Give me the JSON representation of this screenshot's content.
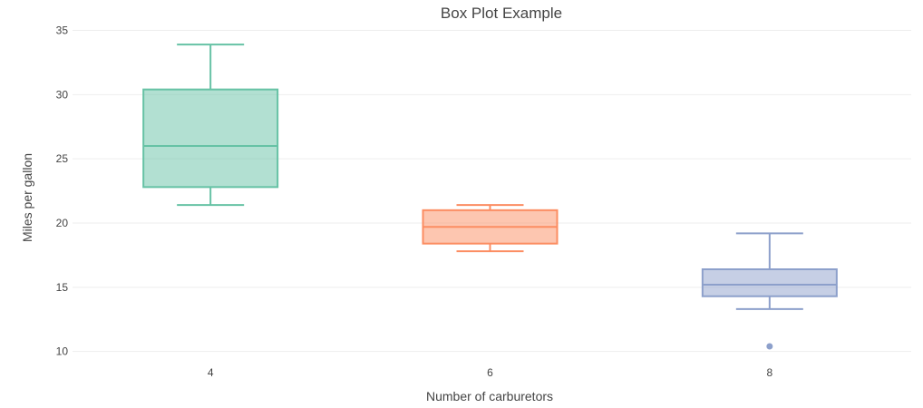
{
  "chart_data": {
    "type": "box",
    "title": "Box Plot Example",
    "xlabel": "Number of carburetors",
    "ylabel": "Miles per gallon",
    "ylim": [
      9.2,
      35.6
    ],
    "yticks": [
      10,
      15,
      20,
      25,
      30,
      35
    ],
    "series": [
      {
        "name": "4",
        "category": "4",
        "color": "#66c2a5",
        "fill": "rgba(102,194,165,0.5)",
        "lowerfence": 21.4,
        "q1": 22.8,
        "median": 26.0,
        "q3": 30.4,
        "upperfence": 33.9,
        "outliers": []
      },
      {
        "name": "6",
        "category": "6",
        "color": "#fc8d62",
        "fill": "rgba(252,141,98,0.5)",
        "lowerfence": 17.8,
        "q1": 18.4,
        "median": 19.7,
        "q3": 21.0,
        "upperfence": 21.4,
        "outliers": []
      },
      {
        "name": "8",
        "category": "8",
        "color": "#8da0cb",
        "fill": "rgba(141,160,203,0.5)",
        "lowerfence": 13.3,
        "q1": 14.3,
        "median": 15.2,
        "q3": 16.4,
        "upperfence": 19.2,
        "outliers": [
          10.4
        ]
      }
    ]
  }
}
